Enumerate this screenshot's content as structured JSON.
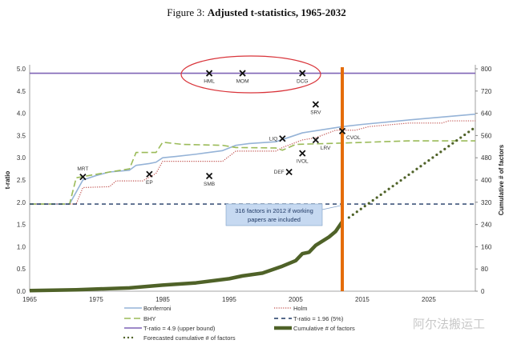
{
  "title": {
    "prefix": "Figure 3:",
    "main": "Adjusted t-statistics, 1965-2032"
  },
  "watermark": "阿尔法搬运工",
  "chart_data": {
    "type": "line",
    "xlim": [
      1965,
      2032
    ],
    "ylim": [
      0,
      5
    ],
    "y2lim": [
      0,
      800
    ],
    "ylabel": "t-ratio",
    "y2label": "Cumulative # of factors",
    "xticks": [
      1965,
      1975,
      1985,
      1995,
      2005,
      2015,
      2025
    ],
    "yticks": [
      "0.0",
      "0.5",
      "1.0",
      "1.5",
      "2.0",
      "2.5",
      "3.0",
      "3.5",
      "4.0",
      "4.5",
      "5.0"
    ],
    "y2ticks": [
      "0",
      "80",
      "160",
      "240",
      "320",
      "400",
      "480",
      "560",
      "640",
      "720",
      "800"
    ],
    "series": [
      {
        "name": "Bonferroni",
        "axis": "left",
        "color": "#95b3d7",
        "style": "solid",
        "points": [
          [
            1965,
            1.96
          ],
          [
            1971,
            1.96
          ],
          [
            1973,
            2.5
          ],
          [
            1975,
            2.6
          ],
          [
            1977,
            2.68
          ],
          [
            1980,
            2.72
          ],
          [
            1981,
            2.83
          ],
          [
            1983,
            2.87
          ],
          [
            1984,
            2.9
          ],
          [
            1985,
            3.0
          ],
          [
            1987,
            3.03
          ],
          [
            1990,
            3.08
          ],
          [
            1994,
            3.16
          ],
          [
            1996,
            3.28
          ],
          [
            1998,
            3.32
          ],
          [
            2002,
            3.36
          ],
          [
            2006,
            3.56
          ],
          [
            2012,
            3.7
          ],
          [
            2015,
            3.75
          ],
          [
            2022,
            3.85
          ],
          [
            2032,
            3.98
          ]
        ]
      },
      {
        "name": "Holm",
        "axis": "left",
        "color": "#c0504d",
        "style": "dotted",
        "points": [
          [
            1965,
            1.96
          ],
          [
            1972,
            1.96
          ],
          [
            1973,
            2.33
          ],
          [
            1977,
            2.35
          ],
          [
            1978,
            2.48
          ],
          [
            1982,
            2.48
          ],
          [
            1984,
            2.65
          ],
          [
            1985,
            2.92
          ],
          [
            1994,
            2.92
          ],
          [
            1996,
            3.15
          ],
          [
            2002,
            3.15
          ],
          [
            2003,
            3.23
          ],
          [
            2006,
            3.4
          ],
          [
            2008,
            3.45
          ],
          [
            2011,
            3.62
          ],
          [
            2014,
            3.62
          ],
          [
            2016,
            3.7
          ],
          [
            2022,
            3.78
          ],
          [
            2027,
            3.78
          ],
          [
            2028,
            3.83
          ],
          [
            2032,
            3.83
          ]
        ]
      },
      {
        "name": "BHY",
        "axis": "left",
        "color": "#9bbb59",
        "style": "dashed",
        "points": [
          [
            1965,
            1.96
          ],
          [
            1971,
            1.96
          ],
          [
            1972,
            2.55
          ],
          [
            1977,
            2.68
          ],
          [
            1980,
            2.75
          ],
          [
            1981,
            3.12
          ],
          [
            1984,
            3.12
          ],
          [
            1985,
            3.35
          ],
          [
            1988,
            3.3
          ],
          [
            1994,
            3.28
          ],
          [
            1996,
            3.23
          ],
          [
            2002,
            3.22
          ],
          [
            2003,
            3.17
          ],
          [
            2005,
            3.3
          ],
          [
            2012,
            3.33
          ],
          [
            2022,
            3.38
          ],
          [
            2032,
            3.38
          ]
        ]
      },
      {
        "name": "T-ratio = 1.96 (5%)",
        "axis": "left",
        "color": "#1f3864",
        "style": "dash",
        "points": [
          [
            1965,
            1.96
          ],
          [
            2032,
            1.96
          ]
        ]
      },
      {
        "name": "T-ratio = 4.9 (upper bound)",
        "axis": "left",
        "color": "#7f64b6",
        "style": "solid",
        "points": [
          [
            1965,
            4.9
          ],
          [
            2032,
            4.9
          ]
        ]
      },
      {
        "name": "Cumulative # of factors",
        "axis": "right",
        "color": "#4f6228",
        "style": "thick",
        "points": [
          [
            1965,
            2
          ],
          [
            1972,
            5
          ],
          [
            1980,
            12
          ],
          [
            1985,
            22
          ],
          [
            1990,
            30
          ],
          [
            1995,
            45
          ],
          [
            1997,
            55
          ],
          [
            2000,
            65
          ],
          [
            2003,
            90
          ],
          [
            2005,
            110
          ],
          [
            2006,
            135
          ],
          [
            2007,
            140
          ],
          [
            2008,
            165
          ],
          [
            2010,
            195
          ],
          [
            2011,
            215
          ],
          [
            2012,
            250
          ]
        ]
      },
      {
        "name": "Forecasted cumulative # of factors",
        "axis": "right",
        "color": "#4f6228",
        "style": "dots",
        "points": [
          [
            2013,
            265
          ],
          [
            2032,
            590
          ]
        ]
      }
    ],
    "factors": [
      {
        "label": "HML",
        "x": 1992,
        "y": 4.9
      },
      {
        "label": "MOM",
        "x": 1997,
        "y": 4.9
      },
      {
        "label": "DCG",
        "x": 2006,
        "y": 4.9
      },
      {
        "label": "SRV",
        "x": 2008,
        "y": 4.2
      },
      {
        "label": "MRT",
        "x": 1973,
        "y": 2.57
      },
      {
        "label": "EP",
        "x": 1983,
        "y": 2.63
      },
      {
        "label": "SMB",
        "x": 1992,
        "y": 2.59
      },
      {
        "label": "LIQ",
        "x": 2003,
        "y": 3.43
      },
      {
        "label": "DEF",
        "x": 2004,
        "y": 2.68
      },
      {
        "label": "IVOL",
        "x": 2006,
        "y": 3.1
      },
      {
        "label": "LRV",
        "x": 2008,
        "y": 3.4
      },
      {
        "label": "CVOL",
        "x": 2012,
        "y": 3.6
      }
    ],
    "vertical_line": {
      "x": 2012,
      "color": "#e46c0a"
    },
    "annotation": {
      "line1": "316  factors in 2012 if  working",
      "line2": "papers are included"
    }
  }
}
